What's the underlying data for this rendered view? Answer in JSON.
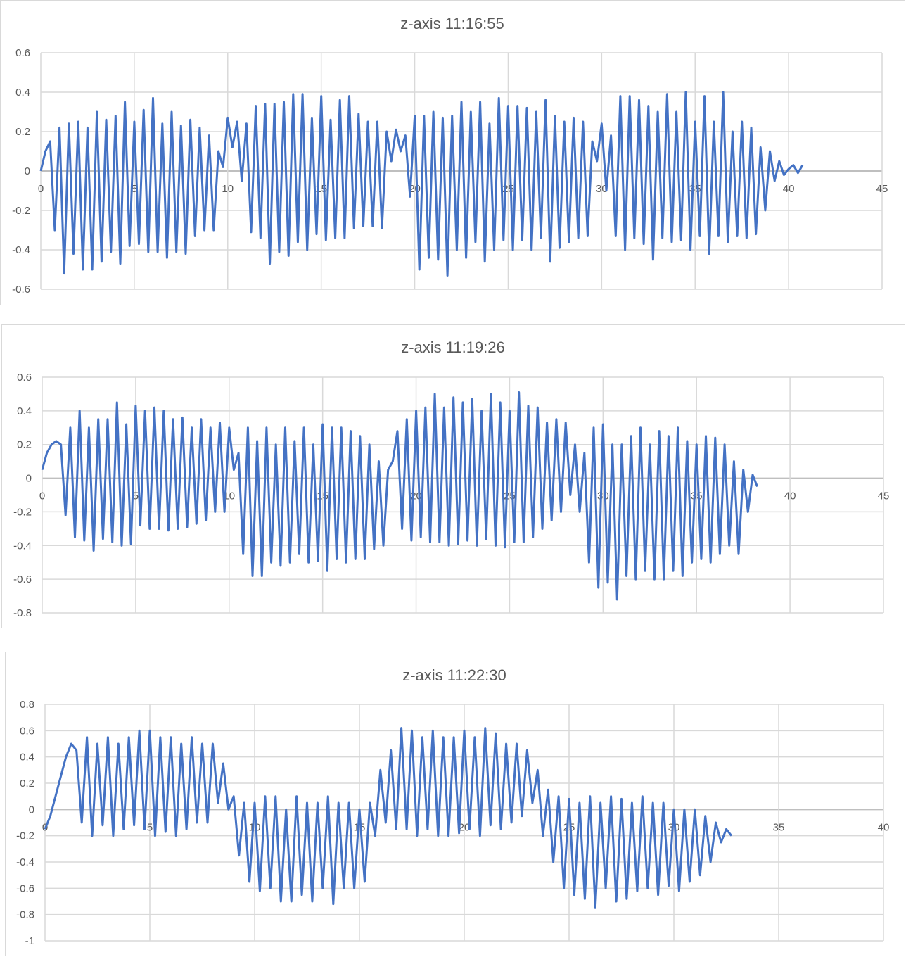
{
  "chart_data": [
    {
      "type": "line",
      "title": "z-axis 11:16:55",
      "xlabel": "",
      "ylabel": "",
      "xlim": [
        0,
        45
      ],
      "ylim": [
        -0.6,
        0.6
      ],
      "xticks": [
        "0",
        "5",
        "10",
        "15",
        "20",
        "25",
        "30",
        "35",
        "40",
        "45"
      ],
      "yticks": [
        "0.6",
        "0.4",
        "0.2",
        "0",
        "-0.2",
        "-0.4",
        "-0.6"
      ],
      "grid": true,
      "color": "#4472C4",
      "series": [
        {
          "name": "z-axis",
          "x_start": 0,
          "x_step": 0.25,
          "y": [
            0,
            0.1,
            0.15,
            -0.3,
            0.22,
            -0.52,
            0.24,
            -0.42,
            0.25,
            -0.5,
            0.22,
            -0.5,
            0.3,
            -0.46,
            0.26,
            -0.41,
            0.28,
            -0.47,
            0.35,
            -0.38,
            0.25,
            -0.37,
            0.31,
            -0.41,
            0.37,
            -0.41,
            0.24,
            -0.44,
            0.3,
            -0.41,
            0.23,
            -0.42,
            0.26,
            -0.33,
            0.22,
            -0.3,
            0.18,
            -0.3,
            0.1,
            0.02,
            0.27,
            0.12,
            0.25,
            -0.05,
            0.24,
            -0.31,
            0.33,
            -0.34,
            0.34,
            -0.47,
            0.34,
            -0.41,
            0.35,
            -0.43,
            0.39,
            -0.36,
            0.39,
            -0.4,
            0.27,
            -0.32,
            0.38,
            -0.35,
            0.26,
            -0.34,
            0.36,
            -0.34,
            0.38,
            -0.29,
            0.29,
            -0.28,
            0.25,
            -0.28,
            0.25,
            -0.29,
            0.2,
            0.05,
            0.21,
            0.1,
            0.18,
            -0.13,
            0.28,
            -0.5,
            0.28,
            -0.44,
            0.3,
            -0.45,
            0.27,
            -0.53,
            0.28,
            -0.4,
            0.35,
            -0.44,
            0.3,
            -0.36,
            0.35,
            -0.46,
            0.24,
            -0.4,
            0.37,
            -0.35,
            0.33,
            -0.4,
            0.33,
            -0.35,
            0.32,
            -0.4,
            0.3,
            -0.34,
            0.36,
            -0.46,
            0.28,
            -0.39,
            0.25,
            -0.36,
            0.27,
            -0.34,
            0.25,
            -0.33,
            0.15,
            0.05,
            0.24,
            -0.1,
            0.18,
            -0.33,
            0.38,
            -0.4,
            0.38,
            -0.34,
            0.36,
            -0.37,
            0.33,
            -0.45,
            0.3,
            -0.34,
            0.39,
            -0.36,
            0.3,
            -0.35,
            0.4,
            -0.4,
            0.25,
            -0.33,
            0.38,
            -0.42,
            0.25,
            -0.33,
            0.4,
            -0.36,
            0.2,
            -0.33,
            0.25,
            -0.34,
            0.22,
            -0.32,
            0.12,
            -0.2,
            0.1,
            -0.05,
            0.05,
            -0.02,
            0.01,
            0.03,
            -0.01,
            0.03
          ]
        }
      ]
    },
    {
      "type": "line",
      "title": "z-axis 11:19:26",
      "xlabel": "",
      "ylabel": "",
      "xlim": [
        0,
        45
      ],
      "ylim": [
        -0.8,
        0.6
      ],
      "xticks": [
        "0",
        "5",
        "10",
        "15",
        "20",
        "25",
        "30",
        "35",
        "40",
        "45"
      ],
      "yticks": [
        "0.6",
        "0.4",
        "0.2",
        "0",
        "-0.2",
        "-0.4",
        "-0.6",
        "-0.8"
      ],
      "grid": true,
      "color": "#4472C4",
      "series": [
        {
          "name": "z-axis",
          "x_start": 0,
          "x_step": 0.25,
          "y": [
            0.05,
            0.15,
            0.2,
            0.22,
            0.2,
            -0.22,
            0.3,
            -0.35,
            0.4,
            -0.37,
            0.3,
            -0.43,
            0.35,
            -0.36,
            0.35,
            -0.38,
            0.45,
            -0.4,
            0.32,
            -0.39,
            0.43,
            -0.28,
            0.4,
            -0.3,
            0.42,
            -0.3,
            0.4,
            -0.31,
            0.35,
            -0.3,
            0.36,
            -0.29,
            0.3,
            -0.27,
            0.35,
            -0.25,
            0.3,
            -0.2,
            0.33,
            -0.2,
            0.3,
            0.05,
            0.15,
            -0.45,
            0.3,
            -0.58,
            0.22,
            -0.58,
            0.3,
            -0.5,
            0.2,
            -0.52,
            0.3,
            -0.5,
            0.22,
            -0.45,
            0.3,
            -0.5,
            0.2,
            -0.49,
            0.32,
            -0.55,
            0.3,
            -0.48,
            0.3,
            -0.5,
            0.28,
            -0.48,
            0.25,
            -0.48,
            0.2,
            -0.42,
            0.1,
            -0.4,
            0.05,
            0.1,
            0.28,
            -0.3,
            0.35,
            -0.37,
            0.4,
            -0.35,
            0.42,
            -0.38,
            0.5,
            -0.38,
            0.42,
            -0.4,
            0.48,
            -0.39,
            0.45,
            -0.37,
            0.47,
            -0.4,
            0.4,
            -0.36,
            0.5,
            -0.4,
            0.45,
            -0.41,
            0.4,
            -0.38,
            0.51,
            -0.38,
            0.43,
            -0.35,
            0.42,
            -0.3,
            0.33,
            -0.25,
            0.35,
            -0.2,
            0.33,
            -0.1,
            0.2,
            -0.2,
            0.15,
            -0.5,
            0.3,
            -0.65,
            0.32,
            -0.62,
            0.2,
            -0.72,
            0.2,
            -0.58,
            0.25,
            -0.6,
            0.3,
            -0.55,
            0.2,
            -0.6,
            0.28,
            -0.6,
            0.25,
            -0.55,
            0.3,
            -0.58,
            0.22,
            -0.5,
            0.2,
            -0.48,
            0.25,
            -0.5,
            0.24,
            -0.45,
            0.2,
            -0.4,
            0.1,
            -0.45,
            0.05,
            -0.2,
            0.02,
            -0.05
          ]
        }
      ]
    },
    {
      "type": "line",
      "title": "z-axis 11:22:30",
      "xlabel": "",
      "ylabel": "",
      "xlim": [
        0,
        40
      ],
      "ylim": [
        -1,
        0.8
      ],
      "xticks": [
        "0",
        "5",
        "10",
        "15",
        "20",
        "25",
        "30",
        "35",
        "40"
      ],
      "yticks": [
        "0.8",
        "0.6",
        "0.4",
        "0.2",
        "0",
        "-0.2",
        "-0.4",
        "-0.6",
        "-0.8",
        "-1"
      ],
      "grid": true,
      "color": "#4472C4",
      "series": [
        {
          "name": "z-axis",
          "x_start": 0,
          "x_step": 0.25,
          "y": [
            -0.15,
            -0.05,
            0.1,
            0.25,
            0.4,
            0.5,
            0.45,
            -0.1,
            0.55,
            -0.2,
            0.5,
            -0.12,
            0.55,
            -0.2,
            0.5,
            -0.15,
            0.55,
            -0.12,
            0.6,
            -0.15,
            0.6,
            -0.2,
            0.55,
            -0.17,
            0.55,
            -0.2,
            0.5,
            -0.15,
            0.55,
            -0.1,
            0.5,
            -0.1,
            0.5,
            0.05,
            0.35,
            0.0,
            0.1,
            -0.35,
            0.05,
            -0.55,
            0.05,
            -0.62,
            0.1,
            -0.6,
            0.1,
            -0.7,
            0.0,
            -0.7,
            0.1,
            -0.65,
            0.05,
            -0.7,
            0.05,
            -0.6,
            0.1,
            -0.72,
            0.05,
            -0.6,
            0.05,
            -0.6,
            0.0,
            -0.55,
            0.05,
            -0.2,
            0.3,
            -0.1,
            0.45,
            -0.15,
            0.62,
            -0.15,
            0.6,
            -0.2,
            0.55,
            -0.15,
            0.6,
            -0.2,
            0.55,
            -0.2,
            0.55,
            -0.18,
            0.6,
            -0.15,
            0.55,
            -0.2,
            0.62,
            -0.12,
            0.58,
            -0.15,
            0.5,
            -0.1,
            0.5,
            -0.05,
            0.45,
            0.05,
            0.3,
            -0.2,
            0.15,
            -0.4,
            0.1,
            -0.6,
            0.08,
            -0.65,
            0.05,
            -0.68,
            0.1,
            -0.75,
            0.05,
            -0.6,
            0.1,
            -0.7,
            0.08,
            -0.68,
            0.05,
            -0.62,
            0.1,
            -0.6,
            0.05,
            -0.65,
            0.05,
            -0.58,
            0.0,
            -0.62,
            0.0,
            -0.55,
            0.0,
            -0.5,
            -0.05,
            -0.4,
            -0.1,
            -0.25,
            -0.15,
            -0.2
          ]
        }
      ]
    }
  ]
}
